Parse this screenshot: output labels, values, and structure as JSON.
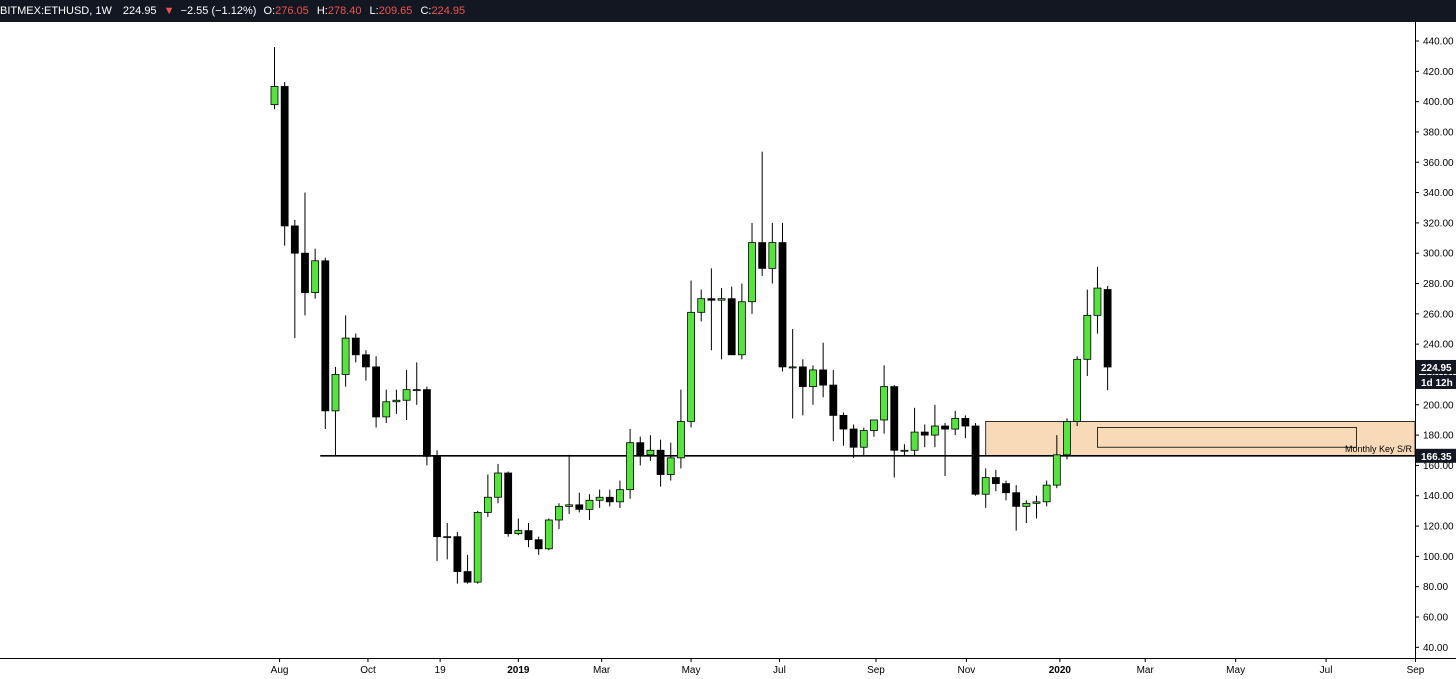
{
  "header": {
    "symbol": "BITMEX:ETHUSD, 1W",
    "last": "224.95",
    "change_arrow": "▼",
    "change": "−2.55 (−1.12%)",
    "o_label": "O:",
    "o_value": "276.05",
    "h_label": "H:",
    "h_value": "278.40",
    "l_label": "L:",
    "l_value": "209.65",
    "c_label": "C:",
    "c_value": "224.95"
  },
  "colors": {
    "up": "#56e33e",
    "down": "#000000",
    "zone_fill": "#f8d9b8",
    "zone_stroke": "#000000",
    "price_badge": "#131722",
    "change_red": "#ef5350"
  },
  "chart_data": {
    "type": "candlestick",
    "symbol": "BITMEX:ETHUSD",
    "timeframe": "1W",
    "y_ticks": [
      40,
      60,
      80,
      100,
      120,
      140,
      160,
      180,
      200,
      220,
      240,
      260,
      280,
      300,
      320,
      340,
      360,
      380,
      400,
      420,
      440
    ],
    "y_tick_labels": [
      "40.00",
      "60.00",
      "80.00",
      "100.00",
      "120.00",
      "140.00",
      "160.00",
      "180.00",
      "200.00",
      "220.00",
      "240.00",
      "260.00",
      "280.00",
      "300.00",
      "320.00",
      "340.00",
      "360.00",
      "380.00",
      "400.00",
      "420.00",
      "440.00"
    ],
    "ylim": [
      30,
      447
    ],
    "x_labels": [
      {
        "label": "Aug",
        "idx": 0.5
      },
      {
        "label": "Oct",
        "idx": 9.2
      },
      {
        "label": "19",
        "idx": 16.3
      },
      {
        "label": "2019",
        "idx": 24.0,
        "bold": true
      },
      {
        "label": "Mar",
        "idx": 32.2
      },
      {
        "label": "May",
        "idx": 41.0
      },
      {
        "label": "Jul",
        "idx": 49.7
      },
      {
        "label": "Sep",
        "idx": 59.2
      },
      {
        "label": "Nov",
        "idx": 68.1
      },
      {
        "label": "2020",
        "idx": 77.3,
        "bold": true
      },
      {
        "label": "Mar",
        "idx": 85.7
      },
      {
        "label": "May",
        "idx": 94.6
      },
      {
        "label": "Jul",
        "idx": 103.5
      },
      {
        "label": "Sep",
        "idx": 112.3
      }
    ],
    "candles": [
      {
        "o": 398,
        "h": 436,
        "l": 395,
        "c": 410
      },
      {
        "o": 410,
        "h": 413,
        "l": 305,
        "c": 318
      },
      {
        "o": 318,
        "h": 322,
        "l": 244,
        "c": 300
      },
      {
        "o": 300,
        "h": 340,
        "l": 259,
        "c": 274
      },
      {
        "o": 274,
        "h": 303,
        "l": 270,
        "c": 295
      },
      {
        "o": 295,
        "h": 297,
        "l": 184,
        "c": 196
      },
      {
        "o": 196,
        "h": 225,
        "l": 166,
        "c": 220
      },
      {
        "o": 220,
        "h": 259,
        "l": 212,
        "c": 244
      },
      {
        "o": 244,
        "h": 247,
        "l": 228,
        "c": 233
      },
      {
        "o": 233,
        "h": 236,
        "l": 216,
        "c": 225
      },
      {
        "o": 225,
        "h": 232,
        "l": 185,
        "c": 192
      },
      {
        "o": 192,
        "h": 210,
        "l": 188,
        "c": 202
      },
      {
        "o": 202,
        "h": 210,
        "l": 194,
        "c": 203
      },
      {
        "o": 203,
        "h": 223,
        "l": 190,
        "c": 210
      },
      {
        "o": 210,
        "h": 228,
        "l": 200,
        "c": 210
      },
      {
        "o": 210,
        "h": 212,
        "l": 160,
        "c": 166
      },
      {
        "o": 166,
        "h": 170,
        "l": 97,
        "c": 113
      },
      {
        "o": 113,
        "h": 122,
        "l": 98,
        "c": 113
      },
      {
        "o": 113,
        "h": 116,
        "l": 82,
        "c": 90
      },
      {
        "o": 90,
        "h": 101,
        "l": 82,
        "c": 83
      },
      {
        "o": 83,
        "h": 130,
        "l": 82,
        "c": 129
      },
      {
        "o": 129,
        "h": 154,
        "l": 126,
        "c": 139
      },
      {
        "o": 139,
        "h": 161,
        "l": 135,
        "c": 155
      },
      {
        "o": 155,
        "h": 156,
        "l": 113,
        "c": 115
      },
      {
        "o": 115,
        "h": 125,
        "l": 114,
        "c": 117
      },
      {
        "o": 117,
        "h": 122,
        "l": 106,
        "c": 111
      },
      {
        "o": 111,
        "h": 113,
        "l": 101,
        "c": 105
      },
      {
        "o": 105,
        "h": 125,
        "l": 104,
        "c": 124
      },
      {
        "o": 124,
        "h": 135,
        "l": 118,
        "c": 133
      },
      {
        "o": 133,
        "h": 167,
        "l": 128,
        "c": 134
      },
      {
        "o": 134,
        "h": 142,
        "l": 129,
        "c": 131
      },
      {
        "o": 131,
        "h": 141,
        "l": 124,
        "c": 137
      },
      {
        "o": 137,
        "h": 144,
        "l": 132,
        "c": 139
      },
      {
        "o": 139,
        "h": 144,
        "l": 133,
        "c": 136
      },
      {
        "o": 136,
        "h": 150,
        "l": 132,
        "c": 144
      },
      {
        "o": 144,
        "h": 184,
        "l": 138,
        "c": 175
      },
      {
        "o": 175,
        "h": 179,
        "l": 160,
        "c": 167
      },
      {
        "o": 167,
        "h": 180,
        "l": 163,
        "c": 170
      },
      {
        "o": 170,
        "h": 177,
        "l": 146,
        "c": 154
      },
      {
        "o": 154,
        "h": 175,
        "l": 150,
        "c": 165
      },
      {
        "o": 165,
        "h": 210,
        "l": 158,
        "c": 189
      },
      {
        "o": 189,
        "h": 282,
        "l": 185,
        "c": 261
      },
      {
        "o": 261,
        "h": 276,
        "l": 255,
        "c": 270
      },
      {
        "o": 270,
        "h": 290,
        "l": 236,
        "c": 269
      },
      {
        "o": 269,
        "h": 277,
        "l": 230,
        "c": 270
      },
      {
        "o": 270,
        "h": 278,
        "l": 234,
        "c": 233
      },
      {
        "o": 233,
        "h": 280,
        "l": 230,
        "c": 268
      },
      {
        "o": 268,
        "h": 320,
        "l": 260,
        "c": 307
      },
      {
        "o": 307,
        "h": 367,
        "l": 285,
        "c": 290
      },
      {
        "o": 290,
        "h": 320,
        "l": 280,
        "c": 307
      },
      {
        "o": 307,
        "h": 320,
        "l": 222,
        "c": 225
      },
      {
        "o": 225,
        "h": 250,
        "l": 191,
        "c": 225
      },
      {
        "o": 225,
        "h": 230,
        "l": 193,
        "c": 212
      },
      {
        "o": 212,
        "h": 226,
        "l": 200,
        "c": 223
      },
      {
        "o": 223,
        "h": 241,
        "l": 205,
        "c": 213
      },
      {
        "o": 213,
        "h": 223,
        "l": 176,
        "c": 193
      },
      {
        "o": 193,
        "h": 195,
        "l": 173,
        "c": 184
      },
      {
        "o": 184,
        "h": 187,
        "l": 165,
        "c": 172
      },
      {
        "o": 172,
        "h": 185,
        "l": 166,
        "c": 183
      },
      {
        "o": 183,
        "h": 190,
        "l": 179,
        "c": 190
      },
      {
        "o": 190,
        "h": 226,
        "l": 181,
        "c": 212
      },
      {
        "o": 212,
        "h": 213,
        "l": 152,
        "c": 170
      },
      {
        "o": 170,
        "h": 174,
        "l": 166,
        "c": 170
      },
      {
        "o": 170,
        "h": 198,
        "l": 166,
        "c": 182
      },
      {
        "o": 182,
        "h": 187,
        "l": 172,
        "c": 180
      },
      {
        "o": 180,
        "h": 200,
        "l": 172,
        "c": 186
      },
      {
        "o": 186,
        "h": 188,
        "l": 153,
        "c": 184
      },
      {
        "o": 184,
        "h": 196,
        "l": 180,
        "c": 191
      },
      {
        "o": 191,
        "h": 193,
        "l": 178,
        "c": 186
      },
      {
        "o": 186,
        "h": 188,
        "l": 140,
        "c": 141
      },
      {
        "o": 141,
        "h": 158,
        "l": 132,
        "c": 152
      },
      {
        "o": 152,
        "h": 157,
        "l": 143,
        "c": 148
      },
      {
        "o": 148,
        "h": 150,
        "l": 137,
        "c": 142
      },
      {
        "o": 142,
        "h": 147,
        "l": 117,
        "c": 133
      },
      {
        "o": 133,
        "h": 137,
        "l": 122,
        "c": 135
      },
      {
        "o": 135,
        "h": 140,
        "l": 125,
        "c": 136
      },
      {
        "o": 136,
        "h": 150,
        "l": 133,
        "c": 147
      },
      {
        "o": 147,
        "h": 180,
        "l": 145,
        "c": 167
      },
      {
        "o": 167,
        "h": 191,
        "l": 164,
        "c": 189
      },
      {
        "o": 189,
        "h": 232,
        "l": 186,
        "c": 230
      },
      {
        "o": 230,
        "h": 276,
        "l": 219,
        "c": 259
      },
      {
        "o": 259,
        "h": 291,
        "l": 247,
        "c": 277
      },
      {
        "o": 276.05,
        "h": 278.4,
        "l": 209.65,
        "c": 224.95
      }
    ],
    "support_line": {
      "price": 166.35,
      "label": "166.35",
      "start_idx": 4.5
    },
    "zone": {
      "top": 189,
      "bottom": 166.35,
      "start_idx": 70,
      "label": "Monthly Key S/R"
    },
    "inner_box": {
      "top": 185,
      "bottom": 172,
      "start_idx": 81,
      "end_idx": 106.5
    },
    "last_price": {
      "price": 224.95,
      "label": "224.95",
      "countdown": "1d 12h"
    }
  }
}
